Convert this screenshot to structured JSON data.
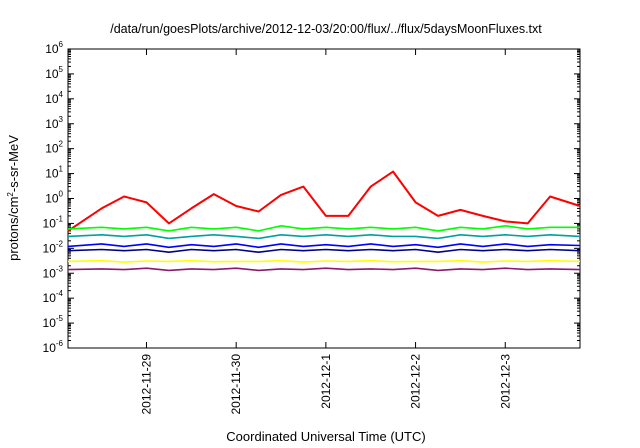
{
  "chart_data": {
    "type": "line",
    "title": "/data/run/goesPlots/archive/2012-12-03/20:00/flux/../flux/5daysMoonFluxes.txt",
    "xlabel": "Coordinated Universal Time (UTC)",
    "ylabel": {
      "prefix": "protons/cm",
      "sup": "2",
      "suffix": "-s-sr-MeV"
    },
    "xlim": [
      "2012-11-28T03:00",
      "2012-12-03T20:00"
    ],
    "x_ticks": [
      "2012-11-29",
      "2012-11-30",
      "2012-12-1",
      "2012-12-2",
      "2012-12-3"
    ],
    "x_tick_dates": [
      "2012-11-29T00:00",
      "2012-11-30T00:00",
      "2012-12-01T00:00",
      "2012-12-02T00:00",
      "2012-12-03T00:00"
    ],
    "yscale": "log",
    "ylim": [
      1e-06,
      1000000.0
    ],
    "y_ticks": [
      {
        "base": "10",
        "exp": "-6"
      },
      {
        "base": "10",
        "exp": "-5"
      },
      {
        "base": "10",
        "exp": "-4"
      },
      {
        "base": "10",
        "exp": "-3"
      },
      {
        "base": "10",
        "exp": "-2"
      },
      {
        "base": "10",
        "exp": "-1"
      },
      {
        "base": "10",
        "exp": "0"
      },
      {
        "base": "10",
        "exp": "1"
      },
      {
        "base": "10",
        "exp": "2"
      },
      {
        "base": "10",
        "exp": "3"
      },
      {
        "base": "10",
        "exp": "4"
      },
      {
        "base": "10",
        "exp": "5"
      },
      {
        "base": "10",
        "exp": "6"
      }
    ],
    "grid": false,
    "legend": "none",
    "x": [
      "2012-11-28T03:00",
      "2012-11-28T12:00",
      "2012-11-28T18:00",
      "2012-11-29T00:00",
      "2012-11-29T06:00",
      "2012-11-29T12:00",
      "2012-11-29T18:00",
      "2012-11-30T00:00",
      "2012-11-30T06:00",
      "2012-11-30T12:00",
      "2012-11-30T18:00",
      "2012-12-01T00:00",
      "2012-12-01T06:00",
      "2012-12-01T12:00",
      "2012-12-01T18:00",
      "2012-12-02T00:00",
      "2012-12-02T06:00",
      "2012-12-02T12:00",
      "2012-12-02T18:00",
      "2012-12-03T00:00",
      "2012-12-03T06:00",
      "2012-12-03T12:00",
      "2012-12-03T20:00"
    ],
    "series": [
      {
        "color": "#ff0000",
        "values": [
          0.05,
          0.4,
          1.2,
          0.7,
          0.1,
          0.4,
          1.5,
          0.5,
          0.3,
          1.4,
          3,
          0.2,
          0.2,
          3,
          12,
          0.7,
          0.2,
          0.35,
          0.2,
          0.12,
          0.1,
          1.2,
          0.5
        ]
      },
      {
        "color": "#00ff00",
        "values": [
          0.06,
          0.07,
          0.06,
          0.07,
          0.05,
          0.07,
          0.06,
          0.07,
          0.05,
          0.08,
          0.06,
          0.07,
          0.06,
          0.07,
          0.06,
          0.07,
          0.05,
          0.07,
          0.06,
          0.08,
          0.06,
          0.07,
          0.07
        ]
      },
      {
        "color": "#00a0a0",
        "values": [
          0.03,
          0.035,
          0.03,
          0.035,
          0.025,
          0.03,
          0.035,
          0.03,
          0.025,
          0.035,
          0.03,
          0.035,
          0.03,
          0.035,
          0.03,
          0.03,
          0.025,
          0.035,
          0.03,
          0.035,
          0.03,
          0.035,
          0.03
        ]
      },
      {
        "color": "#0000ff",
        "values": [
          0.012,
          0.015,
          0.012,
          0.015,
          0.011,
          0.014,
          0.012,
          0.015,
          0.011,
          0.015,
          0.012,
          0.014,
          0.012,
          0.015,
          0.012,
          0.014,
          0.011,
          0.015,
          0.012,
          0.015,
          0.012,
          0.014,
          0.013
        ]
      },
      {
        "color": "#00008b",
        "values": [
          0.008,
          0.009,
          0.008,
          0.009,
          0.007,
          0.009,
          0.008,
          0.009,
          0.007,
          0.009,
          0.008,
          0.009,
          0.008,
          0.009,
          0.008,
          0.009,
          0.007,
          0.009,
          0.008,
          0.009,
          0.008,
          0.009,
          0.008
        ]
      },
      {
        "color": "#ffff00",
        "values": [
          0.003,
          0.0032,
          0.0028,
          0.0031,
          0.003,
          0.0032,
          0.0029,
          0.003,
          0.003,
          0.0032,
          0.0028,
          0.0031,
          0.003,
          0.0032,
          0.0029,
          0.003,
          0.003,
          0.0032,
          0.0028,
          0.0031,
          0.003,
          0.0032,
          0.003
        ]
      },
      {
        "color": "#8b1a6b",
        "values": [
          0.0014,
          0.0015,
          0.0014,
          0.0016,
          0.0013,
          0.0015,
          0.0014,
          0.0016,
          0.0013,
          0.0015,
          0.0014,
          0.0016,
          0.0014,
          0.0015,
          0.0014,
          0.0016,
          0.0013,
          0.0015,
          0.0014,
          0.0016,
          0.0014,
          0.0015,
          0.0014
        ]
      }
    ]
  }
}
